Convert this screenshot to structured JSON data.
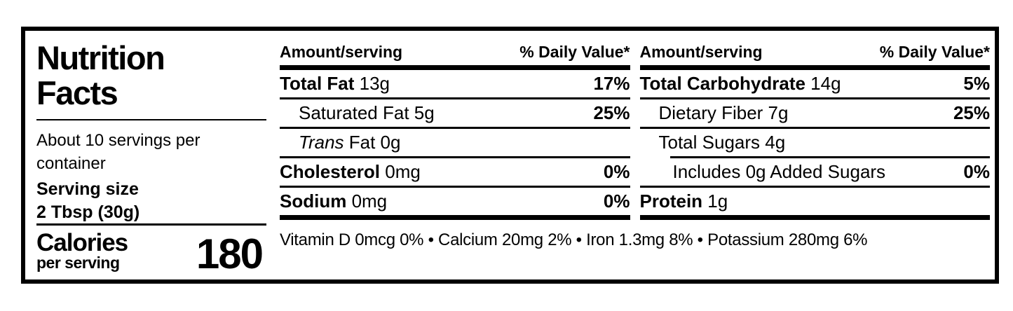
{
  "label": {
    "title": "Nutrition Facts",
    "servings_per_container": "About 10 servings per container",
    "serving_size_label": "Serving size",
    "serving_size_value": "2 Tbsp (30g)",
    "calories_label": "Calories",
    "calories_sub": "per serving",
    "calories_value": "180"
  },
  "columns": [
    {
      "header": {
        "amount": "Amount/serving",
        "dv": "% Daily Value*"
      },
      "rows": [
        {
          "bold": "Total Fat",
          "rest": " 13g",
          "pct": "17%"
        },
        {
          "rest": "Saturated Fat 5g",
          "pct": "25%"
        },
        {
          "italic": "Trans",
          "rest": " Fat 0g"
        },
        {
          "bold": "Cholesterol",
          "rest": " 0mg",
          "pct": "0%"
        },
        {
          "bold": "Sodium",
          "rest": " 0mg",
          "pct": "0%"
        }
      ]
    },
    {
      "header": {
        "amount": "Amount/serving",
        "dv": "% Daily Value*"
      },
      "rows": [
        {
          "bold": "Total Carbohydrate",
          "rest": " 14g",
          "pct": "5%"
        },
        {
          "rest": "Dietary Fiber 7g",
          "pct": "25%"
        },
        {
          "rest": "Total Sugars 4g"
        },
        {
          "rest": "Includes 0g Added Sugars",
          "pct": "0%"
        },
        {
          "bold": "Protein",
          "rest": " 1g"
        }
      ]
    }
  ],
  "footnote": "Vitamin D 0mcg 0% • Calcium 20mg 2% • Iron 1.3mg 8% • Potassium 280mg 6%",
  "colors": {
    "ink": "#000000",
    "background": "#ffffff"
  }
}
